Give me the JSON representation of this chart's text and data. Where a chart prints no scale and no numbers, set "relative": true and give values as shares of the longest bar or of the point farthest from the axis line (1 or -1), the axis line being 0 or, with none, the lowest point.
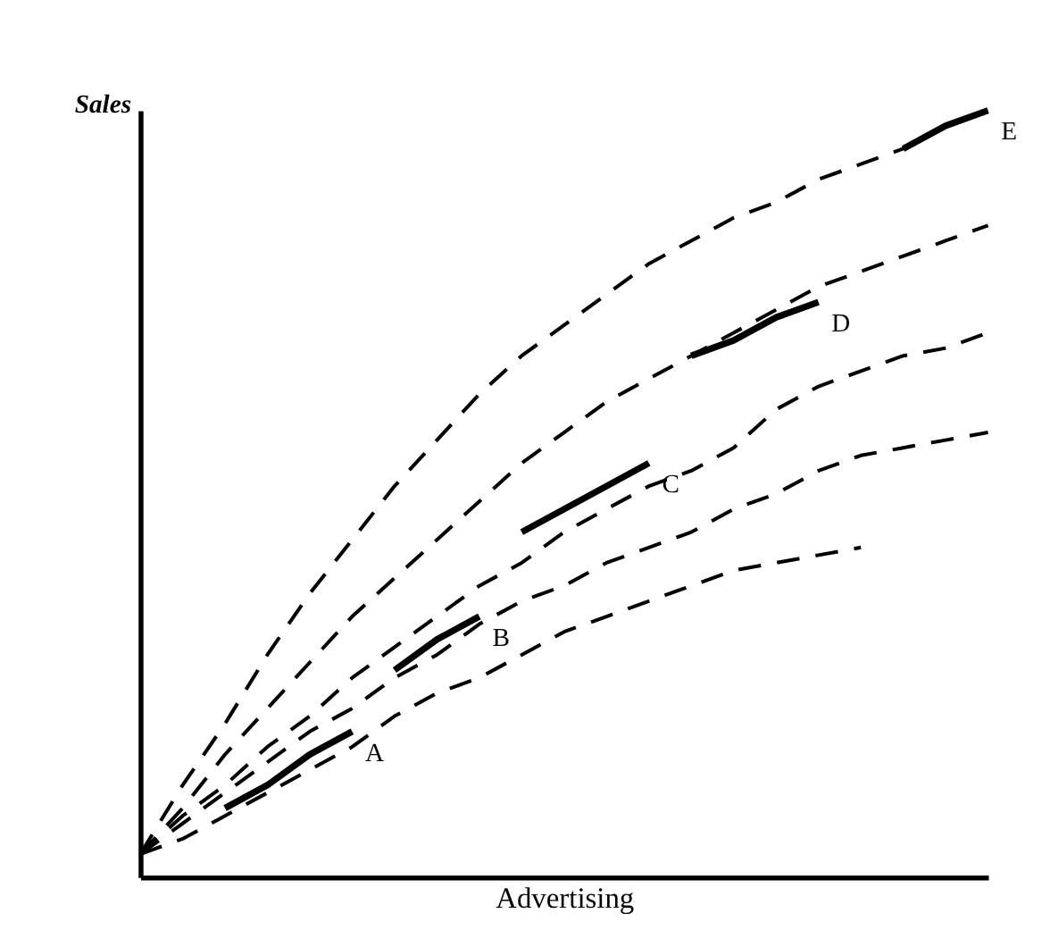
{
  "chart_data": {
    "type": "line",
    "relative": true,
    "ylabel": "Sales",
    "xlabel": "Advertising",
    "grid": false,
    "tick_labels": false,
    "marker": "none",
    "categories": [
      null,
      null,
      null,
      null,
      null,
      null,
      null,
      null,
      null,
      null,
      null,
      null,
      null,
      null,
      null,
      null,
      null,
      null,
      null,
      null,
      null
    ],
    "series": [
      {
        "color": "#000000",
        "line_style": "dashed",
        "values": [
          0.03,
          0.12,
          0.2,
          0.29,
          0.37,
          0.44,
          0.51,
          0.57,
          0.63,
          0.68,
          0.72,
          0.76,
          0.8,
          0.83,
          0.86,
          0.88,
          0.91,
          0.93,
          0.95,
          0.98,
          1.0
        ]
      },
      {
        "color": "#000000",
        "line_style": "dashed",
        "values": [
          0.03,
          0.09,
          0.16,
          0.22,
          0.28,
          0.34,
          0.39,
          0.44,
          0.49,
          0.54,
          0.58,
          0.62,
          0.65,
          0.68,
          0.71,
          0.74,
          0.77,
          0.79,
          0.81,
          0.83,
          0.85
        ]
      },
      {
        "color": "#000000",
        "line_style": "dashed",
        "values": [
          0.03,
          0.08,
          0.12,
          0.17,
          0.21,
          0.26,
          0.3,
          0.34,
          0.38,
          0.41,
          0.45,
          0.48,
          0.51,
          0.53,
          0.56,
          0.61,
          0.64,
          0.66,
          0.68,
          0.69,
          0.71
        ]
      },
      {
        "color": "#000000",
        "line_style": "dashed",
        "values": [
          0.03,
          0.07,
          0.11,
          0.15,
          0.19,
          0.22,
          0.26,
          0.29,
          0.33,
          0.36,
          0.38,
          0.41,
          0.43,
          0.45,
          0.48,
          0.5,
          0.53,
          0.55,
          0.56,
          0.57,
          0.58
        ]
      },
      {
        "color": "#000000",
        "line_style": "dashed",
        "values": [
          0.03,
          0.05,
          0.08,
          0.11,
          0.14,
          0.17,
          0.21,
          0.24,
          0.26,
          0.29,
          0.32,
          0.34,
          0.36,
          0.38,
          0.4,
          0.41,
          0.42,
          0.43,
          null,
          null,
          null
        ]
      },
      {
        "name": "A",
        "color": "#000000",
        "line_style": "solid",
        "values": [
          null,
          null,
          0.09,
          0.12,
          0.16,
          0.19,
          null,
          null,
          null,
          null,
          null,
          null,
          null,
          null,
          null,
          null,
          null,
          null,
          null,
          null,
          null
        ]
      },
      {
        "name": "B",
        "color": "#000000",
        "line_style": "solid",
        "values": [
          null,
          null,
          null,
          null,
          null,
          null,
          0.27,
          0.31,
          0.34,
          null,
          null,
          null,
          null,
          null,
          null,
          null,
          null,
          null,
          null,
          null,
          null
        ]
      },
      {
        "name": "C",
        "color": "#000000",
        "line_style": "solid",
        "values": [
          null,
          null,
          null,
          null,
          null,
          null,
          null,
          null,
          null,
          0.45,
          0.48,
          0.51,
          0.54,
          null,
          null,
          null,
          null,
          null,
          null,
          null,
          null
        ]
      },
      {
        "name": "D",
        "color": "#000000",
        "line_style": "solid",
        "values": [
          null,
          null,
          null,
          null,
          null,
          null,
          null,
          null,
          null,
          null,
          null,
          null,
          null,
          0.68,
          0.7,
          0.73,
          0.75,
          null,
          null,
          null,
          null
        ]
      },
      {
        "name": "E",
        "color": "#000000",
        "line_style": "solid",
        "values": [
          null,
          null,
          null,
          null,
          null,
          null,
          null,
          null,
          null,
          null,
          null,
          null,
          null,
          null,
          null,
          null,
          null,
          null,
          0.95,
          0.98,
          1.0
        ]
      }
    ]
  }
}
